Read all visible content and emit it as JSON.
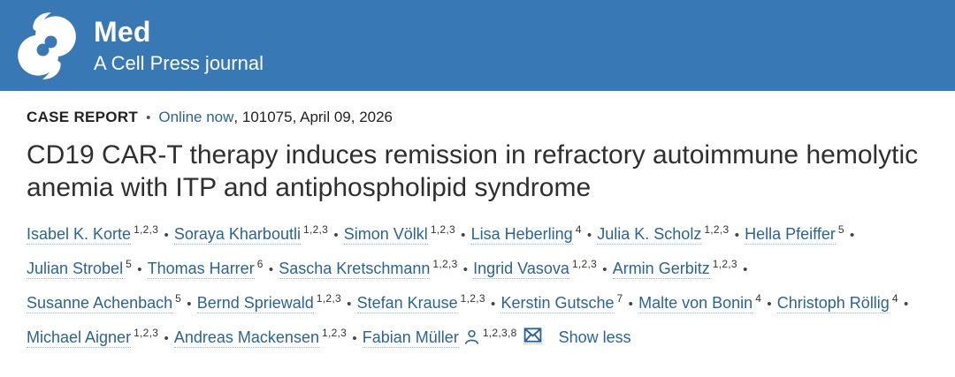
{
  "brand": {
    "logo_icon": "cell-press-logo",
    "journal_name": "Med",
    "tagline": "A Cell Press journal",
    "header_bg_color": "#3778b5",
    "logo_color": "#ffffff"
  },
  "meta": {
    "article_type": "CASE REPORT",
    "separator": "•",
    "online_status_link": "Online now",
    "article_info": ", 101075, April 09, 2026"
  },
  "title": "CD19 CAR-T therapy induces remission in refractory autoimmune hemolytic anemia with ITP and antiphospholipid syndrome",
  "authors": {
    "separator": "•",
    "link_color": "#2a6496",
    "icons": {
      "corresponding": "person-icon",
      "email": "email-icon"
    },
    "show_less_label": "Show less",
    "list": [
      {
        "name": "Isabel K. Korte",
        "sup": "1,2,3"
      },
      {
        "name": "Soraya Kharboutli",
        "sup": "1,2,3"
      },
      {
        "name": "Simon Völkl",
        "sup": "1,2,3"
      },
      {
        "name": "Lisa Heberling",
        "sup": "4"
      },
      {
        "name": "Julia K. Scholz",
        "sup": "1,2,3"
      },
      {
        "name": "Hella Pfeiffer",
        "sup": "5"
      },
      {
        "name": "Julian Strobel",
        "sup": "5"
      },
      {
        "name": "Thomas Harrer",
        "sup": "6"
      },
      {
        "name": "Sascha Kretschmann",
        "sup": "1,2,3"
      },
      {
        "name": "Ingrid Vasova",
        "sup": "1,2,3"
      },
      {
        "name": "Armin Gerbitz",
        "sup": "1,2,3"
      },
      {
        "name": "Susanne Achenbach",
        "sup": "5"
      },
      {
        "name": "Bernd Spriewald",
        "sup": "1,2,3"
      },
      {
        "name": "Stefan Krause",
        "sup": "1,2,3"
      },
      {
        "name": "Kerstin Gutsche",
        "sup": "7"
      },
      {
        "name": "Malte von Bonin",
        "sup": "4"
      },
      {
        "name": "Christoph Röllig",
        "sup": "4"
      },
      {
        "name": "Michael Aigner",
        "sup": "1,2,3"
      },
      {
        "name": "Andreas Mackensen",
        "sup": "1,2,3"
      },
      {
        "name": "Fabian Müller",
        "sup": "1,2,3,8",
        "corresponding": true,
        "email": true
      }
    ]
  }
}
